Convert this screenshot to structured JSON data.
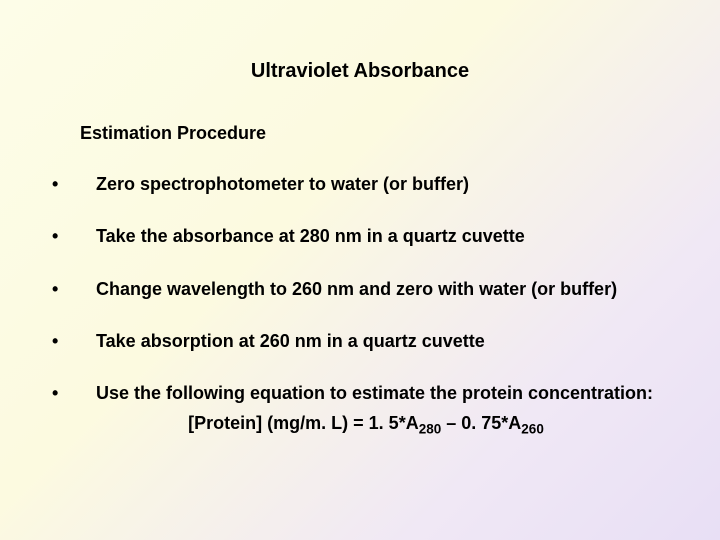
{
  "slide": {
    "title": "Ultraviolet Absorbance",
    "subtitle": "Estimation Procedure",
    "title_fontsize": 20,
    "subtitle_fontsize": 18,
    "body_fontsize": 18,
    "text_color": "#000000",
    "background_gradient": {
      "start": "#fdfde8",
      "mid": "#fcfae0",
      "end": "#e8dff5"
    },
    "bullets": [
      {
        "text": "Zero spectrophotometer to water (or buffer)"
      },
      {
        "text": "Take the absorbance at 280 nm in a quartz cuvette"
      },
      {
        "text": "Change wavelength to 260 nm and zero with water (or buffer)"
      },
      {
        "text": "Take absorption at 260 nm in a quartz cuvette"
      },
      {
        "text": "Use the following equation to estimate the protein concentration:"
      }
    ],
    "equation": {
      "label": "[Protein] (mg/m. L) = 1. 5*A",
      "sub1": "280",
      "mid": " – 0. 75*A",
      "sub2": "260"
    }
  }
}
